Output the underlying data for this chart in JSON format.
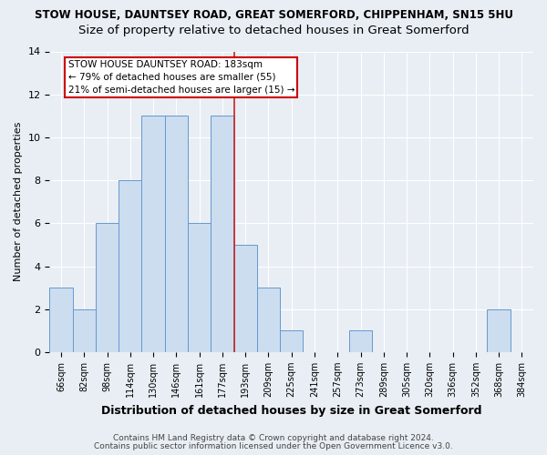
{
  "title1": "STOW HOUSE, DAUNTSEY ROAD, GREAT SOMERFORD, CHIPPENHAM, SN15 5HU",
  "title2": "Size of property relative to detached houses in Great Somerford",
  "xlabel": "Distribution of detached houses by size in Great Somerford",
  "ylabel": "Number of detached properties",
  "categories": [
    "66sqm",
    "82sqm",
    "98sqm",
    "114sqm",
    "130sqm",
    "146sqm",
    "161sqm",
    "177sqm",
    "193sqm",
    "209sqm",
    "225sqm",
    "241sqm",
    "257sqm",
    "273sqm",
    "289sqm",
    "305sqm",
    "320sqm",
    "336sqm",
    "352sqm",
    "368sqm",
    "384sqm"
  ],
  "values": [
    3,
    2,
    6,
    8,
    11,
    11,
    6,
    11,
    5,
    3,
    1,
    0,
    0,
    1,
    0,
    0,
    0,
    0,
    0,
    2,
    0
  ],
  "bar_color": "#ccddf0",
  "bar_edge_color": "#6699cc",
  "vline_color": "#cc2222",
  "vline_x_index": 7.5,
  "annotation_text": "STOW HOUSE DAUNTSEY ROAD: 183sqm\n← 79% of detached houses are smaller (55)\n21% of semi-detached houses are larger (15) →",
  "annotation_box_color": "white",
  "annotation_box_edge_color": "#cc0000",
  "ylim": [
    0,
    14
  ],
  "yticks": [
    0,
    2,
    4,
    6,
    8,
    10,
    12,
    14
  ],
  "footnote1": "Contains HM Land Registry data © Crown copyright and database right 2024.",
  "footnote2": "Contains public sector information licensed under the Open Government Licence v3.0.",
  "bg_color": "#e8eef4",
  "grid_color": "#ffffff",
  "title1_fontsize": 8.5,
  "title2_fontsize": 9.5,
  "xlabel_fontsize": 9,
  "ylabel_fontsize": 8,
  "tick_fontsize": 7,
  "footnote_fontsize": 6.5,
  "annot_fontsize": 7.5
}
